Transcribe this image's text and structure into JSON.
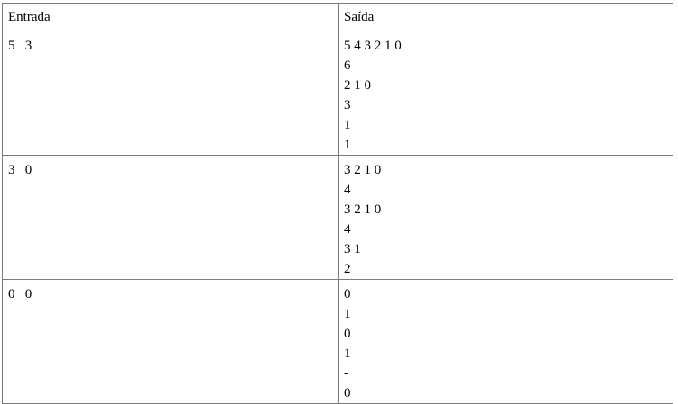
{
  "headers": {
    "input": "Entrada",
    "output": "Saída"
  },
  "rows": [
    {
      "input": "5   3",
      "output": [
        "5 4 3 2 1 0",
        "6",
        "2 1 0",
        "3",
        "1",
        "1"
      ]
    },
    {
      "input": "3   0",
      "output": [
        "3 2 1 0",
        "4",
        "3 2 1 0",
        "4",
        "3 1",
        "2"
      ]
    },
    {
      "input": "0   0",
      "output": [
        "0",
        "1",
        "0",
        "1",
        "-",
        "0"
      ]
    }
  ]
}
